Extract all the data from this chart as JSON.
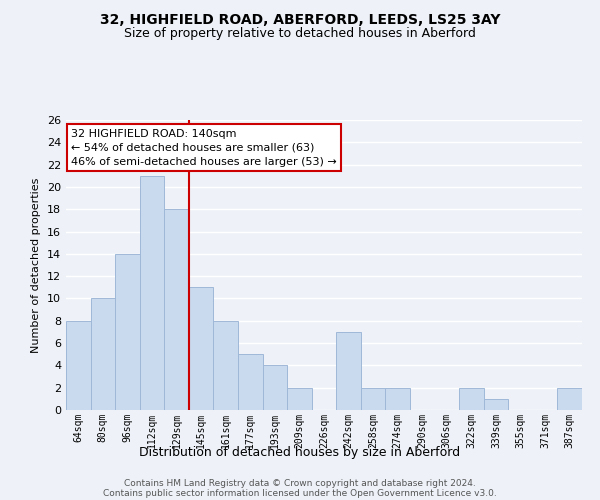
{
  "title1": "32, HIGHFIELD ROAD, ABERFORD, LEEDS, LS25 3AY",
  "title2": "Size of property relative to detached houses in Aberford",
  "xlabel": "Distribution of detached houses by size in Aberford",
  "ylabel": "Number of detached properties",
  "bar_labels": [
    "64sqm",
    "80sqm",
    "96sqm",
    "112sqm",
    "129sqm",
    "145sqm",
    "161sqm",
    "177sqm",
    "193sqm",
    "209sqm",
    "226sqm",
    "242sqm",
    "258sqm",
    "274sqm",
    "290sqm",
    "306sqm",
    "322sqm",
    "339sqm",
    "355sqm",
    "371sqm",
    "387sqm"
  ],
  "bar_values": [
    8,
    10,
    14,
    21,
    18,
    11,
    8,
    5,
    4,
    2,
    0,
    7,
    2,
    2,
    0,
    0,
    2,
    1,
    0,
    0,
    2
  ],
  "bar_color": "#c9d9ee",
  "bar_edge_color": "#a0b8d8",
  "marker_bin_index": 4,
  "marker_line_color": "#cc0000",
  "annotation_line1": "32 HIGHFIELD ROAD: 140sqm",
  "annotation_line2": "← 54% of detached houses are smaller (63)",
  "annotation_line3": "46% of semi-detached houses are larger (53) →",
  "annotation_box_color": "white",
  "annotation_box_edge": "#cc0000",
  "ylim": [
    0,
    26
  ],
  "yticks": [
    0,
    2,
    4,
    6,
    8,
    10,
    12,
    14,
    16,
    18,
    20,
    22,
    24,
    26
  ],
  "footer1": "Contains HM Land Registry data © Crown copyright and database right 2024.",
  "footer2": "Contains public sector information licensed under the Open Government Licence v3.0.",
  "background_color": "#eef2f8",
  "grid_color": "#ffffff"
}
